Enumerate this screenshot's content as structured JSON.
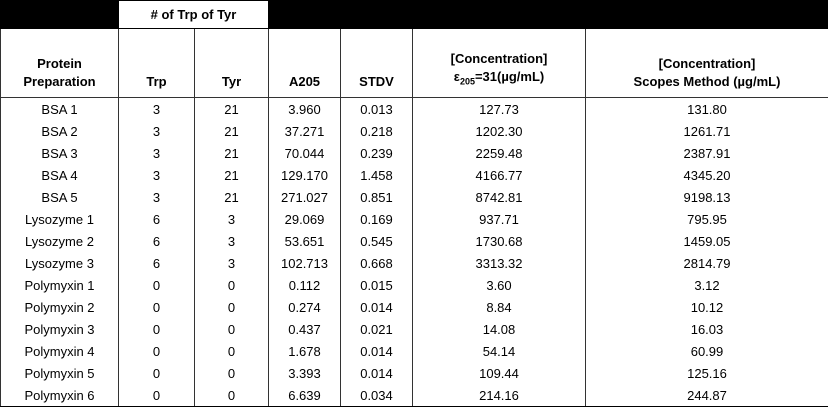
{
  "group_header": "# of Trp of Tyr",
  "header": {
    "protein": [
      "Protein",
      "Preparation"
    ],
    "trp": "Trp",
    "tyr": "Tyr",
    "a205": "A205",
    "stdv": "STDV",
    "conc_eps": {
      "line1": "[Concentration]",
      "symbol": "ε",
      "subscript": "205",
      "rest": "=31(µg/mL)"
    },
    "conc_scopes": [
      "[Concentration]",
      "Scopes Method (µg/mL)"
    ]
  },
  "table": {
    "rows": [
      [
        "BSA 1",
        "3",
        "21",
        "3.960",
        "0.013",
        "127.73",
        "131.80"
      ],
      [
        "BSA 2",
        "3",
        "21",
        "37.271",
        "0.218",
        "1202.30",
        "1261.71"
      ],
      [
        "BSA 3",
        "3",
        "21",
        "70.044",
        "0.239",
        "2259.48",
        "2387.91"
      ],
      [
        "BSA 4",
        "3",
        "21",
        "129.170",
        "1.458",
        "4166.77",
        "4345.20"
      ],
      [
        "BSA 5",
        "3",
        "21",
        "271.027",
        "0.851",
        "8742.81",
        "9198.13"
      ],
      [
        "Lysozyme 1",
        "6",
        "3",
        "29.069",
        "0.169",
        "937.71",
        "795.95"
      ],
      [
        "Lysozyme 2",
        "6",
        "3",
        "53.651",
        "0.545",
        "1730.68",
        "1459.05"
      ],
      [
        "Lysozyme 3",
        "6",
        "3",
        "102.713",
        "0.668",
        "3313.32",
        "2814.79"
      ],
      [
        "Polymyxin 1",
        "0",
        "0",
        "0.112",
        "0.015",
        "3.60",
        "3.12"
      ],
      [
        "Polymyxin 2",
        "0",
        "0",
        "0.274",
        "0.014",
        "8.84",
        "10.12"
      ],
      [
        "Polymyxin 3",
        "0",
        "0",
        "0.437",
        "0.021",
        "14.08",
        "16.03"
      ],
      [
        "Polymyxin 4",
        "0",
        "0",
        "1.678",
        "0.014",
        "54.14",
        "60.99"
      ],
      [
        "Polymyxin 5",
        "0",
        "0",
        "3.393",
        "0.014",
        "109.44",
        "125.16"
      ],
      [
        "Polymyxin 6",
        "0",
        "0",
        "6.639",
        "0.034",
        "214.16",
        "244.87"
      ]
    ]
  }
}
